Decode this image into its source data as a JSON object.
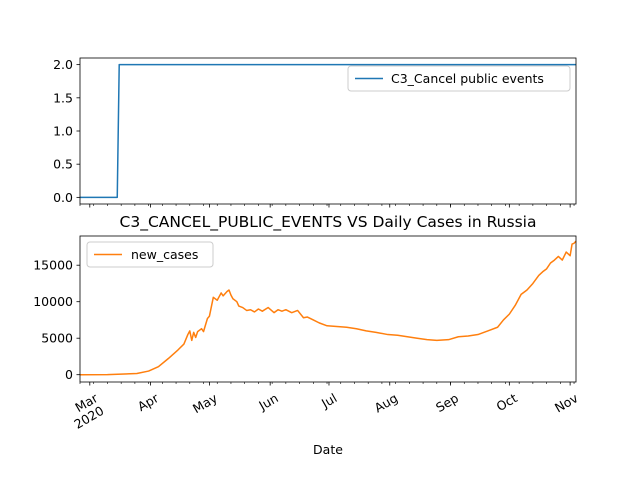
{
  "chart_data": [
    {
      "type": "line",
      "title": "",
      "xlabel": "",
      "ylabel": "",
      "ylim": [
        -0.1,
        2.1
      ],
      "yticks": [
        "0.0",
        "0.5",
        "1.0",
        "1.5",
        "2.0"
      ],
      "legend_position": "top-right",
      "grid": false,
      "series": [
        {
          "name": "C3_Cancel public events",
          "color": "#1f77b4",
          "x": [
            "2020-02-25",
            "2020-03-15",
            "2020-03-16",
            "2020-11-04"
          ],
          "values": [
            0,
            0,
            2,
            2
          ]
        }
      ]
    },
    {
      "type": "line",
      "title": "C3_CANCEL_PUBLIC_EVENTS VS Daily Cases in Russia",
      "xlabel": "Date",
      "ylabel": "",
      "ylim": [
        -1000,
        19000
      ],
      "yticks": [
        "0",
        "5000",
        "10000",
        "15000"
      ],
      "legend_position": "top-left",
      "grid": false,
      "x_tick_labels": [
        "Mar\n2020",
        "Apr",
        "May",
        "Jun",
        "Jul",
        "Aug",
        "Sep",
        "Oct",
        "Nov"
      ],
      "series": [
        {
          "name": "new_cases",
          "color": "#ff7f0e",
          "x": [
            "2020-02-25",
            "2020-03-10",
            "2020-03-25",
            "2020-03-31",
            "2020-04-05",
            "2020-04-10",
            "2020-04-15",
            "2020-04-18",
            "2020-04-20",
            "2020-04-21",
            "2020-04-22",
            "2020-04-23",
            "2020-04-24",
            "2020-04-25",
            "2020-04-27",
            "2020-04-28",
            "2020-04-30",
            "2020-05-01",
            "2020-05-03",
            "2020-05-05",
            "2020-05-07",
            "2020-05-08",
            "2020-05-10",
            "2020-05-11",
            "2020-05-12",
            "2020-05-13",
            "2020-05-15",
            "2020-05-16",
            "2020-05-18",
            "2020-05-20",
            "2020-05-22",
            "2020-05-24",
            "2020-05-26",
            "2020-05-28",
            "2020-05-31",
            "2020-06-03",
            "2020-06-05",
            "2020-06-07",
            "2020-06-09",
            "2020-06-12",
            "2020-06-15",
            "2020-06-18",
            "2020-06-20",
            "2020-06-23",
            "2020-06-26",
            "2020-06-30",
            "2020-07-05",
            "2020-07-10",
            "2020-07-15",
            "2020-07-20",
            "2020-07-25",
            "2020-07-31",
            "2020-08-05",
            "2020-08-10",
            "2020-08-15",
            "2020-08-20",
            "2020-08-25",
            "2020-08-31",
            "2020-09-05",
            "2020-09-10",
            "2020-09-15",
            "2020-09-20",
            "2020-09-25",
            "2020-09-28",
            "2020-10-01",
            "2020-10-04",
            "2020-10-07",
            "2020-10-10",
            "2020-10-13",
            "2020-10-16",
            "2020-10-18",
            "2020-10-20",
            "2020-10-22",
            "2020-10-24",
            "2020-10-26",
            "2020-10-28",
            "2020-10-30",
            "2020-11-01",
            "2020-11-02",
            "2020-11-03",
            "2020-11-04"
          ],
          "values": [
            0,
            10,
            160,
            500,
            1100,
            2200,
            3400,
            4200,
            5500,
            6000,
            4700,
            5800,
            5100,
            5900,
            6300,
            5900,
            7700,
            8000,
            10600,
            10200,
            11200,
            10800,
            11400,
            11600,
            10900,
            10400,
            10000,
            9400,
            9200,
            8800,
            8900,
            8600,
            9000,
            8700,
            9200,
            8500,
            8900,
            8700,
            8900,
            8500,
            8800,
            7800,
            7900,
            7500,
            7100,
            6700,
            6600,
            6500,
            6300,
            6000,
            5800,
            5500,
            5400,
            5200,
            5000,
            4800,
            4700,
            4800,
            5200,
            5300,
            5500,
            6000,
            6500,
            7500,
            8300,
            9500,
            11000,
            11600,
            12500,
            13600,
            14100,
            14500,
            15300,
            15700,
            16200,
            15700,
            16800,
            16300,
            17900,
            18000,
            18300
          ]
        }
      ]
    }
  ]
}
